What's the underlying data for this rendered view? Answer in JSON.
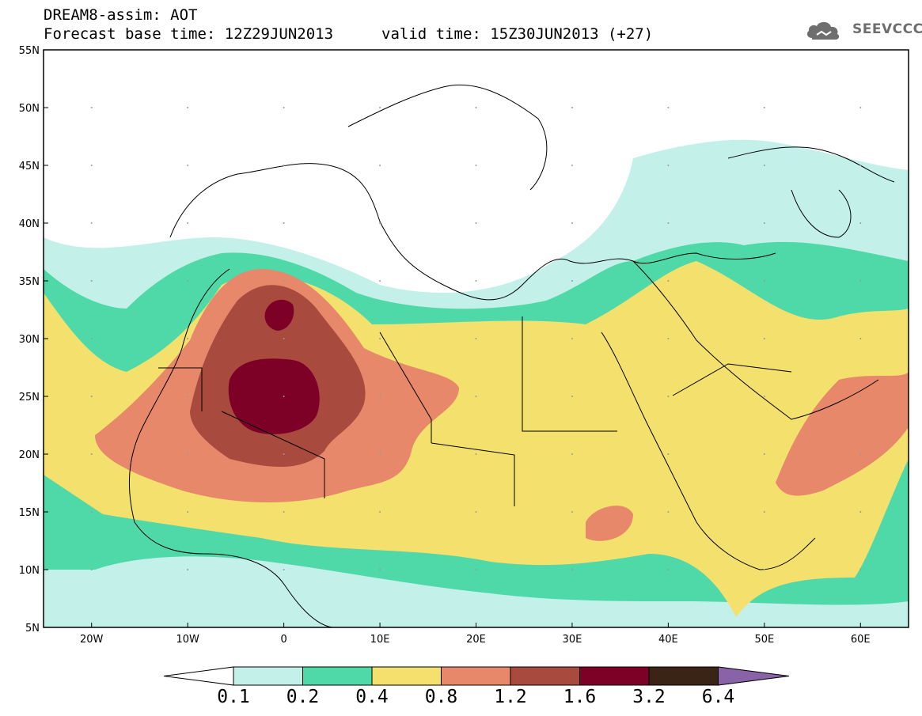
{
  "header": {
    "title": "DREAM8-assim: AOT",
    "base_time_label": "Forecast base time: 12Z29JUN2013",
    "valid_time_label": "valid time: 15Z30JUN2013 (+27)",
    "logo_text": "SEEVCCC"
  },
  "map": {
    "lon_range": [
      -25,
      65
    ],
    "lat_range": [
      5,
      55
    ],
    "lon_ticks": [
      "20W",
      "10W",
      "0",
      "10E",
      "20E",
      "30E",
      "40E",
      "50E",
      "60E"
    ],
    "lat_ticks": [
      "55N",
      "50N",
      "45N",
      "40N",
      "35N",
      "30N",
      "25N",
      "20N",
      "15N",
      "10N",
      "5N"
    ]
  },
  "colorbar": {
    "levels": [
      "0.1",
      "0.2",
      "0.4",
      "0.8",
      "1.2",
      "1.6",
      "3.2",
      "6.4"
    ],
    "colors": [
      "#ffffff",
      "#c4f0ea",
      "#4fd9a9",
      "#f4e06c",
      "#e8886a",
      "#a84a3e",
      "#7d0027",
      "#3a2416",
      "#8a62a8"
    ]
  }
}
